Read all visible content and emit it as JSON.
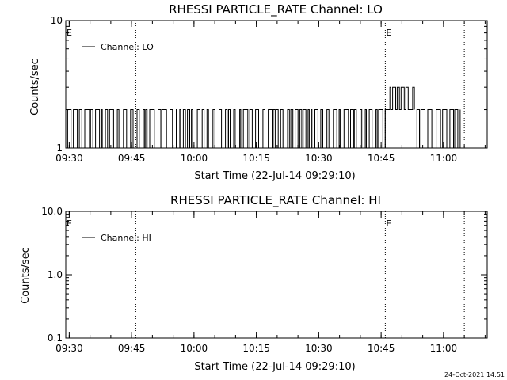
{
  "footer": {
    "timestamp": "24-Oct-2021 14:51"
  },
  "chart_data": [
    {
      "type": "line",
      "title": "RHESSI PARTICLE_RATE Channel: LO",
      "xlabel": "Start Time (22-Jul-14 09:29:10)",
      "ylabel": "Counts/sec",
      "y_scale": "log",
      "ylim": [
        1,
        10
      ],
      "y_ticks": [
        "1",
        "10"
      ],
      "xlim": [
        "09:29:10",
        "11:10:30"
      ],
      "x_ticks": [
        "09:30",
        "09:45",
        "10:00",
        "10:15",
        "10:30",
        "10:45",
        "11:00"
      ],
      "legend": {
        "position": "top-left",
        "entries": [
          "Channel: LO"
        ]
      },
      "event_markers": [
        {
          "label": "E",
          "time": "09:29:10"
        },
        {
          "label": "E",
          "time": "10:46:00"
        }
      ],
      "vertical_lines": [
        "09:46:00",
        "10:46:00",
        "11:05:00"
      ],
      "series": [
        {
          "name": "Channel: LO",
          "description_values": "counts alternate between 1 and 2 from 09:29 to 10:46; between 2 and 3 from about 10:47 to 10:53; between 1 and 2 until 11:04",
          "segments": [
            {
              "start": "09:29:10",
              "end": "10:46:00",
              "values": [
                1,
                2
              ]
            },
            {
              "start": "10:46:00",
              "end": "10:53:00",
              "values": [
                2,
                3
              ]
            },
            {
              "start": "10:53:00",
              "end": "11:04:00",
              "values": [
                1,
                2
              ]
            }
          ]
        }
      ]
    },
    {
      "type": "line",
      "title": "RHESSI PARTICLE_RATE Channel: HI",
      "xlabel": "Start Time (22-Jul-14 09:29:10)",
      "ylabel": "Counts/sec",
      "y_scale": "log",
      "ylim": [
        0.1,
        10
      ],
      "y_ticks": [
        "0.1",
        "1.0",
        "10.0"
      ],
      "xlim": [
        "09:29:10",
        "11:10:30"
      ],
      "x_ticks": [
        "09:30",
        "09:45",
        "10:00",
        "10:15",
        "10:30",
        "10:45",
        "11:00"
      ],
      "legend": {
        "position": "top-left",
        "entries": [
          "Channel: HI"
        ]
      },
      "event_markers": [
        {
          "label": "E",
          "time": "09:29:10"
        },
        {
          "label": "E",
          "time": "10:46:00"
        }
      ],
      "vertical_lines": [
        "09:46:00",
        "10:46:00",
        "11:05:00"
      ],
      "series": [
        {
          "name": "Channel: HI",
          "segments": []
        }
      ]
    }
  ]
}
